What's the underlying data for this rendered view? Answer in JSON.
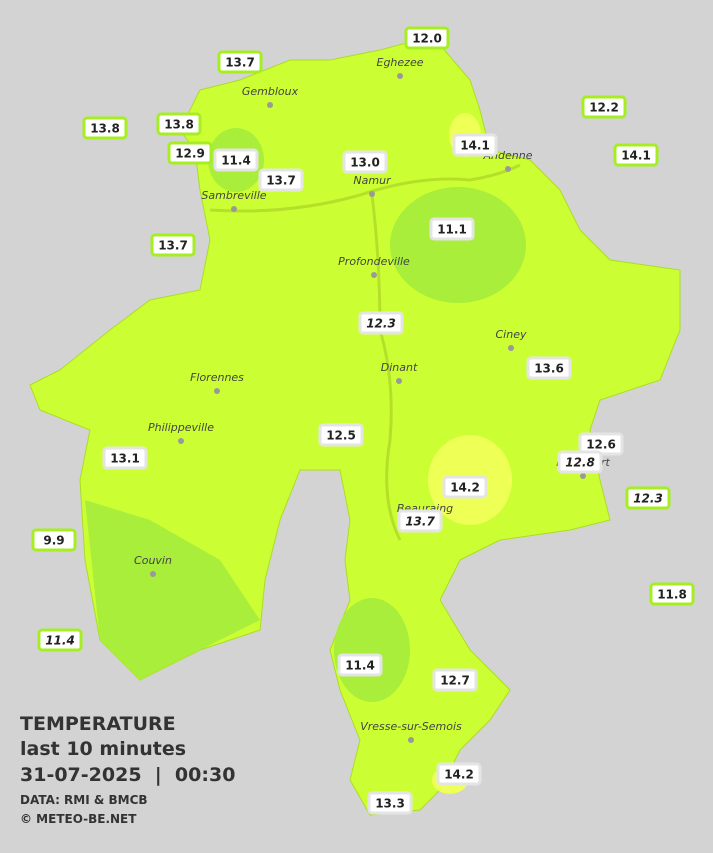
{
  "title": {
    "line1": "TEMPERATURE",
    "line2": "last 10 minutes",
    "line3": "31-07-2025  |  00:30",
    "source": "DATA: RMI & BMCB",
    "credit": "© METEO-BE.NET"
  },
  "cities": [
    "Eghezee",
    "Gembloux",
    "Andenne",
    "Namur",
    "Sambreville",
    "Profondeville",
    "Ciney",
    "Dinant",
    "Florennes",
    "Philippeville",
    "Rochefort",
    "Beauraing",
    "Couvin",
    "Vresse-sur-Semois"
  ],
  "stations": [
    "13.7",
    "12.0",
    "13.8",
    "13.8",
    "12.9",
    "11.4",
    "13.7",
    "13.0",
    "14.1",
    "12.2",
    "14.1",
    "13.7",
    "11.1",
    "12.3",
    "13.6",
    "12.5",
    "13.1",
    "12.6",
    "12.8",
    "12.3",
    "14.2",
    "13.7",
    "9.9",
    "11.8",
    "11.4",
    "11.4",
    "12.7",
    "14.2",
    "13.3"
  ]
}
